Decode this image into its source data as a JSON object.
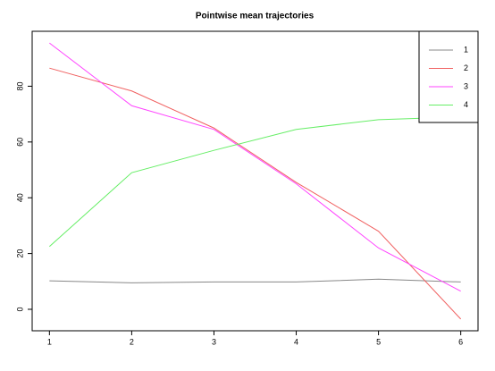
{
  "chart_data": {
    "type": "line",
    "title": "Pointwise mean trajectories",
    "x": [
      1,
      2,
      3,
      4,
      5,
      6
    ],
    "series": [
      {
        "name": "1",
        "color": "#888888",
        "values": [
          10.2,
          9.5,
          9.8,
          9.8,
          10.8,
          9.8
        ]
      },
      {
        "name": "2",
        "color": "#f06060",
        "values": [
          86.5,
          78.3,
          65,
          45.5,
          28,
          -3.5
        ]
      },
      {
        "name": "3",
        "color": "#ff44ff",
        "values": [
          95.5,
          73,
          64.5,
          45,
          22,
          6.5
        ]
      },
      {
        "name": "4",
        "color": "#66ee66",
        "values": [
          22.5,
          49,
          57,
          64.5,
          68,
          69
        ]
      }
    ],
    "xlim": [
      0.79,
      6.21
    ],
    "xticks": [
      1,
      2,
      3,
      4,
      5,
      6
    ],
    "ylim": [
      -7.7,
      99.7
    ],
    "yticks": [
      0,
      20,
      40,
      60,
      80
    ],
    "legend": "topright"
  }
}
